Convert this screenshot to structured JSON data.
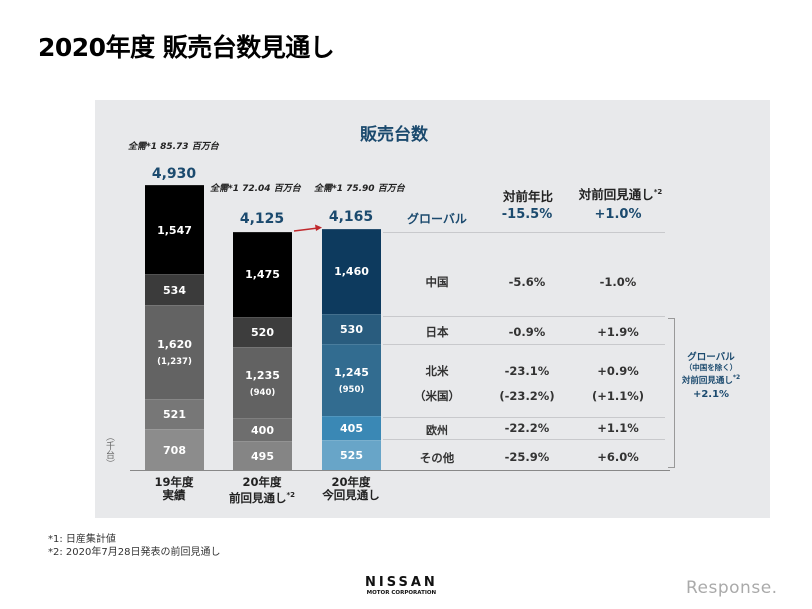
{
  "title": "2020年度 販売台数見通し",
  "chart_data": {
    "type": "bar",
    "stacked": true,
    "title": "販売台数",
    "ylabel": "（千台）",
    "categories": [
      {
        "line1": "19年度",
        "line2": "実績",
        "sup": ""
      },
      {
        "line1": "20年度",
        "line2": "前回見通し",
        "sup": "*2"
      },
      {
        "line1": "20年度",
        "line2": "今回見通し",
        "sup": ""
      }
    ],
    "totals": [
      "4,930",
      "4,125",
      "4,165"
    ],
    "total_values": [
      4930,
      4125,
      4165
    ],
    "market_demand": [
      "全需*1 85.73 百万台",
      "全需*1 72.04 百万台",
      "全需*1 75.90 百万台"
    ],
    "series": [
      {
        "name": "中国",
        "values": [
          1547,
          1475,
          1460
        ],
        "labels": [
          "1,547",
          "1,475",
          "1,460"
        ]
      },
      {
        "name": "日本",
        "values": [
          534,
          520,
          530
        ],
        "labels": [
          "534",
          "520",
          "530"
        ]
      },
      {
        "name": "北米",
        "values": [
          1620,
          1235,
          1245
        ],
        "labels": [
          "1,620",
          "1,235",
          "1,245"
        ],
        "sub_labels": [
          "(1,237)",
          "(940)",
          "(950)"
        ]
      },
      {
        "name": "欧州",
        "values": [
          521,
          400,
          405
        ],
        "labels": [
          "521",
          "400",
          "405"
        ]
      },
      {
        "name": "その他",
        "values": [
          708,
          495,
          525
        ],
        "labels": [
          "708",
          "495",
          "525"
        ]
      }
    ],
    "colors": [
      [
        "#000000",
        "#3b3b3b",
        "#636363",
        "#777777",
        "#8c8c8c"
      ],
      [
        "#000000",
        "#3d3d3d",
        "#626262",
        "#6e6e6e",
        "#858585"
      ],
      [
        "#0d3a5e",
        "#295c7e",
        "#326c90",
        "#3a88b5",
        "#68a5c8"
      ]
    ]
  },
  "table": {
    "col_yoy": "対前年比",
    "col_prev": "対前回見通し",
    "col_prev_sup": "*2",
    "rows": [
      {
        "label": "グローバル",
        "yoy": "-15.5%",
        "prev": "+1.0%"
      },
      {
        "label": "中国",
        "yoy": "-5.6%",
        "prev": "-1.0%"
      },
      {
        "label": "日本",
        "yoy": "-0.9%",
        "prev": "+1.9%"
      },
      {
        "label": "北米",
        "yoy": "-23.1%",
        "prev": "+0.9%",
        "sub_label": "（米国）",
        "sub_yoy": "(-23.2%)",
        "sub_prev": "(+1.1%)"
      },
      {
        "label": "欧州",
        "yoy": "-22.2%",
        "prev": "+1.1%"
      },
      {
        "label": "その他",
        "yoy": "-25.9%",
        "prev": "+6.0%"
      }
    ]
  },
  "side_note": {
    "line1": "グローバル",
    "line2": "（中国を除く）",
    "line3": "対前回見通し",
    "sup": "*2",
    "value": "+2.1%"
  },
  "footnotes": [
    "*1: 日産集計値",
    "*2: 2020年7月28日発表の前回見通し"
  ],
  "logo": {
    "brand": "NISSAN",
    "sub": "MOTOR CORPORATION"
  },
  "watermark": "Response."
}
